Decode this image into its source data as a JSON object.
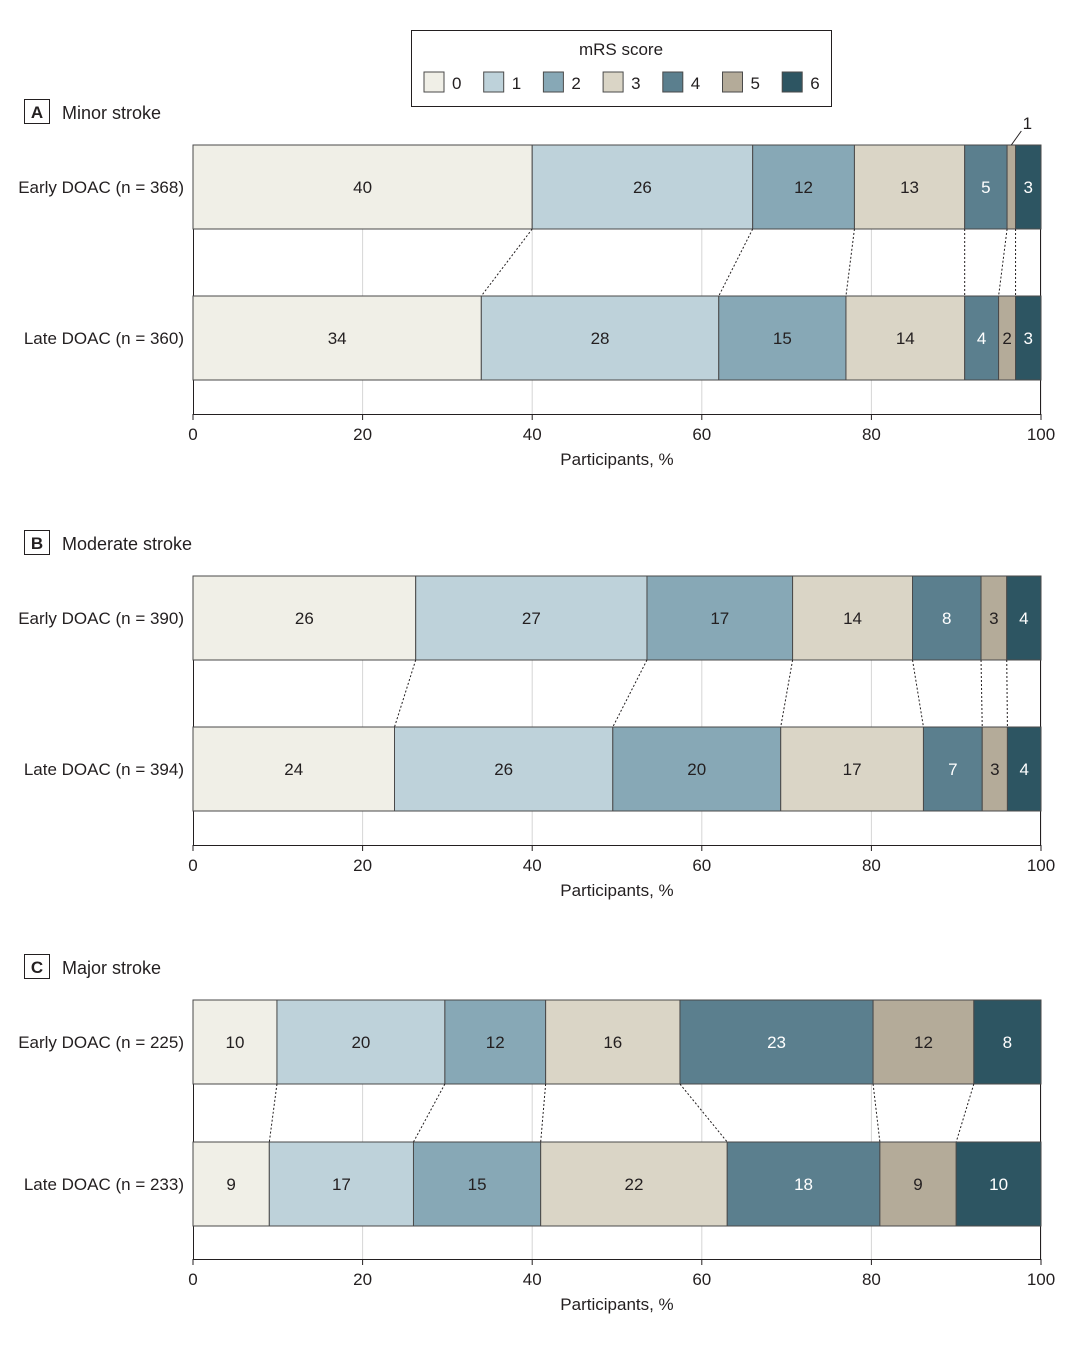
{
  "legend": {
    "title": "mRS score",
    "items": [
      {
        "label": "0",
        "color": "#f0efe7"
      },
      {
        "label": "1",
        "color": "#bed2da"
      },
      {
        "label": "2",
        "color": "#87a8b6"
      },
      {
        "label": "3",
        "color": "#dad5c6"
      },
      {
        "label": "4",
        "color": "#5b7f8e"
      },
      {
        "label": "5",
        "color": "#b4ab99"
      },
      {
        "label": "6",
        "color": "#2d5562"
      }
    ]
  },
  "chart_data": [
    {
      "type": "stacked-bar-horizontal",
      "panel": "A",
      "title": "Minor stroke",
      "xlabel": "Participants, %",
      "xlim": [
        0,
        100
      ],
      "xticks": [
        0,
        20,
        40,
        60,
        80,
        100
      ],
      "categories": [
        "0",
        "1",
        "2",
        "3",
        "4",
        "5",
        "6"
      ],
      "rows": [
        {
          "label": "Early DOAC (n = 368)",
          "values": [
            40,
            26,
            12,
            13,
            5,
            1,
            3
          ],
          "segment_labels": [
            "40",
            "26",
            "12",
            "13",
            "5",
            "",
            "3"
          ]
        },
        {
          "label": "Late DOAC (n = 360)",
          "values": [
            34,
            28,
            15,
            14,
            4,
            2,
            3
          ],
          "segment_labels": [
            "34",
            "28",
            "15",
            "14",
            "4",
            "2",
            "3"
          ]
        }
      ],
      "annotations": [
        {
          "text": "1",
          "row": 0,
          "segment": 5
        }
      ]
    },
    {
      "type": "stacked-bar-horizontal",
      "panel": "B",
      "title": "Moderate stroke",
      "xlabel": "Participants, %",
      "xlim": [
        0,
        100
      ],
      "xticks": [
        0,
        20,
        40,
        60,
        80,
        100
      ],
      "categories": [
        "0",
        "1",
        "2",
        "3",
        "4",
        "5",
        "6"
      ],
      "rows": [
        {
          "label": "Early DOAC (n = 390)",
          "values": [
            26,
            27,
            17,
            14,
            8,
            3,
            4
          ],
          "segment_labels": [
            "26",
            "27",
            "17",
            "14",
            "8",
            "3",
            "4"
          ]
        },
        {
          "label": "Late DOAC (n = 394)",
          "values": [
            24,
            26,
            20,
            17,
            7,
            3,
            4
          ],
          "segment_labels": [
            "24",
            "26",
            "20",
            "17",
            "7",
            "3",
            "4"
          ]
        }
      ],
      "annotations": []
    },
    {
      "type": "stacked-bar-horizontal",
      "panel": "C",
      "title": "Major stroke",
      "xlabel": "Participants, %",
      "xlim": [
        0,
        100
      ],
      "xticks": [
        0,
        20,
        40,
        60,
        80,
        100
      ],
      "categories": [
        "0",
        "1",
        "2",
        "3",
        "4",
        "5",
        "6"
      ],
      "rows": [
        {
          "label": "Early DOAC (n = 225)",
          "values": [
            10,
            20,
            12,
            16,
            23,
            12,
            8
          ],
          "segment_labels": [
            "10",
            "20",
            "12",
            "16",
            "23",
            "12",
            "8"
          ]
        },
        {
          "label": "Late DOAC (n = 233)",
          "values": [
            9,
            17,
            15,
            22,
            18,
            9,
            10
          ],
          "segment_labels": [
            "9",
            "17",
            "15",
            "22",
            "18",
            "9",
            "10"
          ]
        }
      ],
      "annotations": []
    }
  ]
}
